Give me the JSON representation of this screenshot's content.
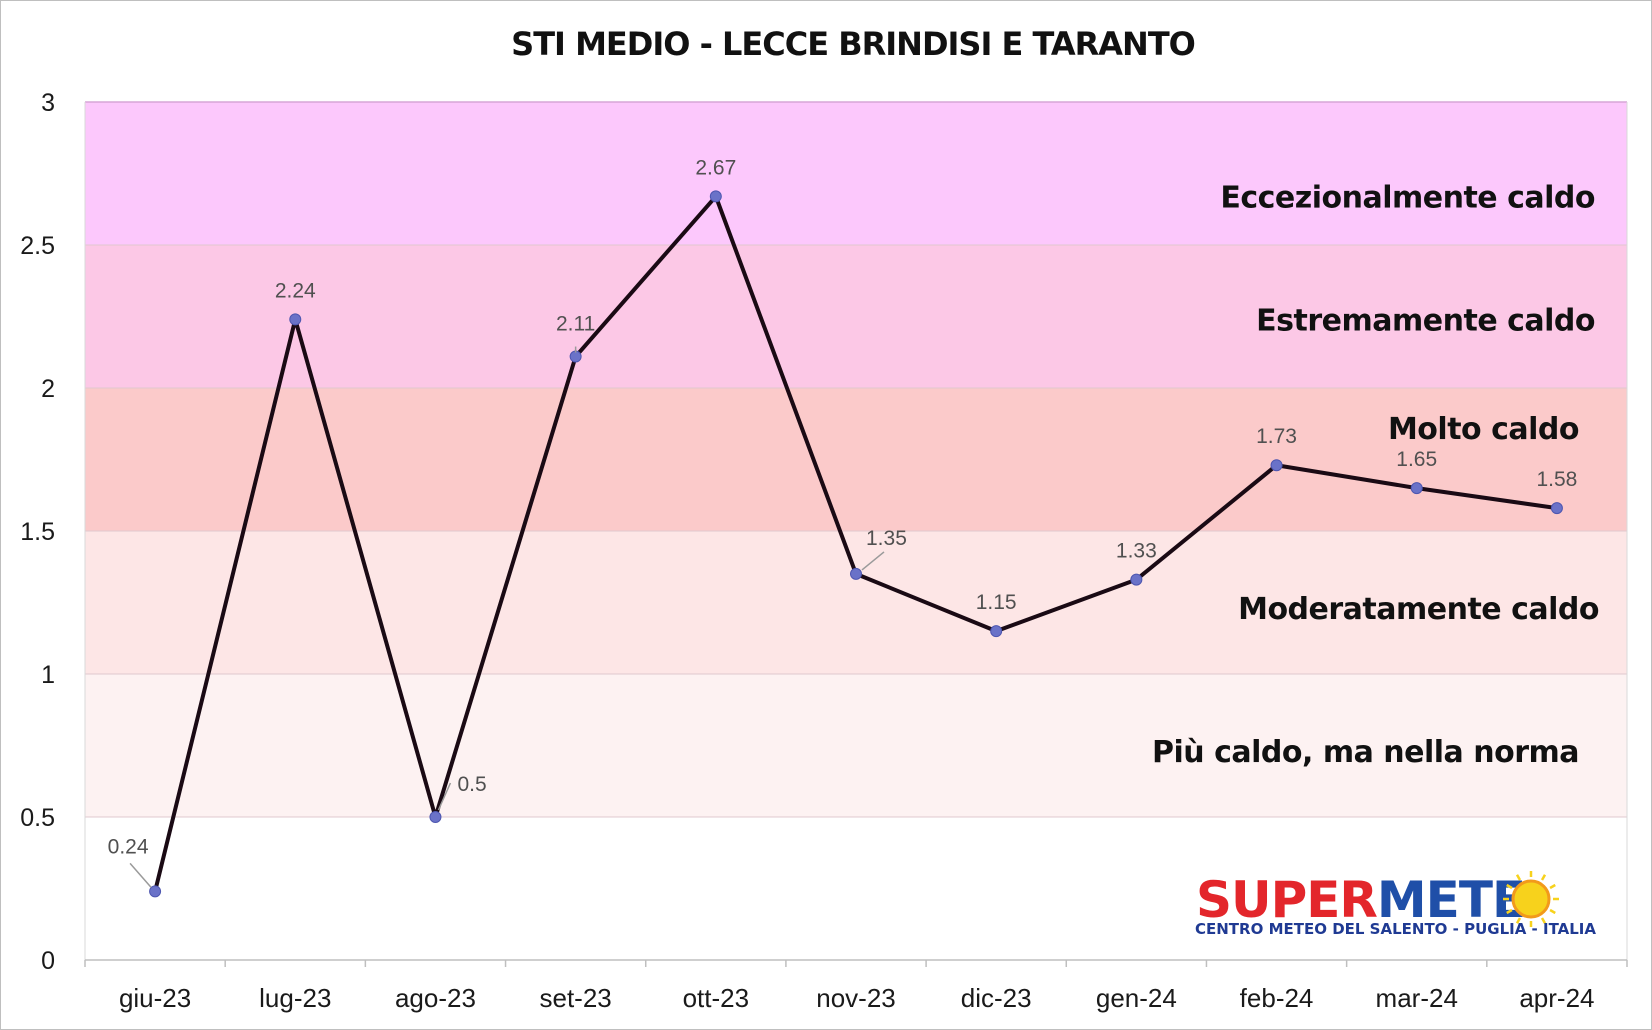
{
  "chart_data": {
    "type": "line",
    "title": "STI MEDIO - LECCE BRINDISI E TARANTO",
    "xlabel": "",
    "ylabel": "",
    "ylim": [
      0,
      3
    ],
    "yticks": [
      "0",
      "0.5",
      "1",
      "1.5",
      "2",
      "2.5",
      "3"
    ],
    "categories": [
      "giu-23",
      "lug-23",
      "ago-23",
      "set-23",
      "ott-23",
      "nov-23",
      "dic-23",
      "gen-24",
      "feb-24",
      "mar-24",
      "apr-24"
    ],
    "series": [
      {
        "values": [
          0.24,
          2.24,
          0.5,
          2.11,
          2.67,
          1.35,
          1.15,
          1.33,
          1.73,
          1.65,
          1.58
        ],
        "labels": [
          "0.24",
          "2.24",
          "0.5",
          "2.11",
          "2.67",
          "1.35",
          "1.15",
          "1.33",
          "1.73",
          "1.65",
          "1.58"
        ],
        "line_color": "#1a0a14",
        "marker_color": "#6a72c8"
      }
    ],
    "bands": [
      {
        "from": 0.5,
        "to": 1.0,
        "label": "Più caldo, ma nella norma",
        "color": "#fdf2f2"
      },
      {
        "from": 1.0,
        "to": 1.5,
        "label": "Moderatamente caldo",
        "color": "#fde6e6"
      },
      {
        "from": 1.5,
        "to": 2.0,
        "label": "Molto caldo",
        "color": "#fbcaca"
      },
      {
        "from": 2.0,
        "to": 2.5,
        "label": "Estremamente caldo",
        "color": "#fcc8e6"
      },
      {
        "from": 2.5,
        "to": 3.0,
        "label": "Eccezionalmente caldo",
        "color": "#fcc8fc"
      }
    ],
    "grid": false,
    "legend": "none"
  },
  "logo": {
    "brand_part1": "SUPER",
    "brand_part2": "METE",
    "tagline": "CENTRO METEO DEL SALENTO - PUGLIA - ITALIA",
    "colors": {
      "part1": "#e3262b",
      "part2": "#1f4fa8",
      "sun": "#f7d21c",
      "sun_ring": "#f29a1b"
    }
  }
}
